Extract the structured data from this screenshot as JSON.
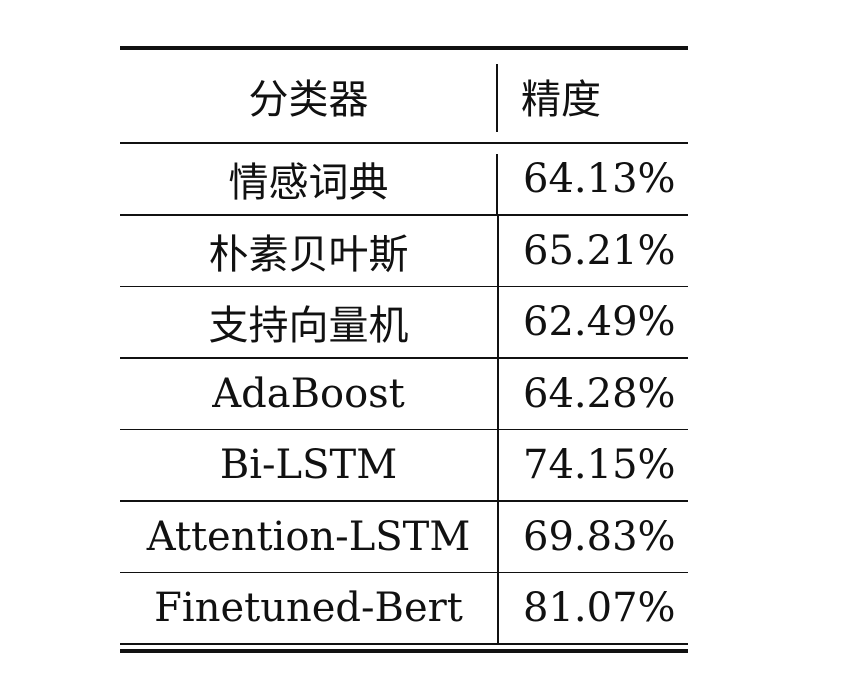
{
  "table": {
    "header": {
      "classifier": "分类器",
      "accuracy": "精度"
    },
    "rows": [
      {
        "classifier": "情感词典",
        "accuracy": "64.13%"
      },
      {
        "classifier": "朴素贝叶斯",
        "accuracy": "65.21%"
      },
      {
        "classifier": "支持向量机",
        "accuracy": "62.49%"
      },
      {
        "classifier": "AdaBoost",
        "accuracy": "64.28%"
      },
      {
        "classifier": "Bi-LSTM",
        "accuracy": "74.15%"
      },
      {
        "classifier": "Attention-LSTM",
        "accuracy": "69.83%"
      },
      {
        "classifier": "Finetuned-Bert",
        "accuracy": "81.07%"
      }
    ]
  }
}
